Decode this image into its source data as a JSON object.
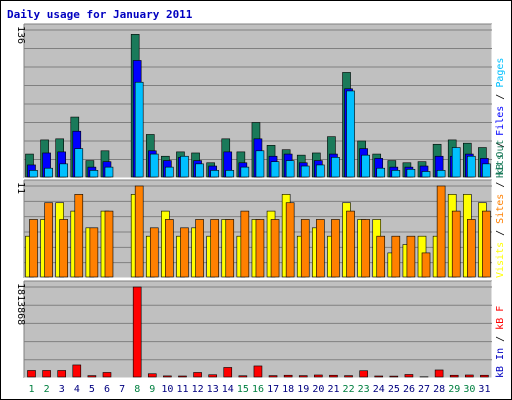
{
  "title": "Daily usage for January 2011",
  "colors": {
    "hits": "#1a7a5a",
    "files": "#0000ff",
    "pages": "#00c0ff",
    "visits": "#ffff00",
    "sites": "#ff8000",
    "kb": "#ff0000",
    "panel_bg": "#c0c0c0",
    "day_weekday": "#000080",
    "day_weekend": "#008040"
  },
  "chart_data": [
    {
      "type": "bar",
      "title": "Daily usage for January 2011",
      "panel": "top",
      "max_label": "136",
      "ylim": [
        0,
        136
      ],
      "legend": [
        {
          "text": "Hits",
          "color": "#1a7a5a"
        },
        {
          "text": "Files",
          "color": "#0000ff"
        },
        {
          "text": "Pages",
          "color": "#00c0ff"
        }
      ],
      "categories": [
        "1",
        "2",
        "3",
        "4",
        "5",
        "6",
        "7",
        "8",
        "9",
        "10",
        "11",
        "12",
        "13",
        "14",
        "15",
        "16",
        "17",
        "18",
        "19",
        "20",
        "21",
        "22",
        "23",
        "24",
        "25",
        "26",
        "27",
        "28",
        "29",
        "30",
        "31"
      ],
      "series": [
        {
          "name": "Hits",
          "values": [
            22,
            35,
            36,
            56,
            16,
            25,
            0,
            132,
            40,
            20,
            24,
            23,
            14,
            36,
            24,
            51,
            30,
            26,
            21,
            23,
            38,
            97,
            34,
            22,
            16,
            14,
            15,
            31,
            35,
            32,
            28
          ]
        },
        {
          "name": "Files",
          "values": [
            12,
            23,
            24,
            43,
            10,
            15,
            0,
            108,
            25,
            16,
            19,
            16,
            11,
            24,
            14,
            36,
            20,
            22,
            14,
            16,
            22,
            82,
            27,
            18,
            10,
            10,
            11,
            20,
            20,
            22,
            18
          ]
        },
        {
          "name": "Pages",
          "values": [
            7,
            9,
            13,
            27,
            7,
            10,
            0,
            88,
            22,
            10,
            20,
            13,
            7,
            7,
            10,
            25,
            15,
            16,
            11,
            12,
            19,
            80,
            21,
            9,
            7,
            8,
            6,
            7,
            28,
            20,
            13
          ]
        }
      ]
    },
    {
      "type": "bar",
      "panel": "middle",
      "max_label": "11",
      "ylim": [
        0,
        11
      ],
      "legend": [
        {
          "text": "Visits",
          "color": "#ffff00"
        },
        {
          "text": "Sites",
          "color": "#ff8000"
        },
        {
          "text": "kB Out",
          "color": "#1a7a5a"
        }
      ],
      "categories": [
        "1",
        "2",
        "3",
        "4",
        "5",
        "6",
        "7",
        "8",
        "9",
        "10",
        "11",
        "12",
        "13",
        "14",
        "15",
        "16",
        "17",
        "18",
        "19",
        "20",
        "21",
        "22",
        "23",
        "24",
        "25",
        "26",
        "27",
        "28",
        "29",
        "30",
        "31"
      ],
      "series": [
        {
          "name": "Visits",
          "values": [
            5,
            7,
            9,
            8,
            6,
            8,
            0,
            10,
            5,
            8,
            5,
            6,
            5,
            7,
            5,
            7,
            8,
            10,
            5,
            6,
            5,
            9,
            7,
            7,
            3,
            4,
            5,
            5,
            10,
            10,
            9
          ]
        },
        {
          "name": "Sites",
          "values": [
            7,
            9,
            7,
            10,
            6,
            8,
            0,
            11,
            6,
            7,
            6,
            7,
            7,
            7,
            8,
            7,
            7,
            9,
            7,
            7,
            7,
            8,
            7,
            5,
            5,
            5,
            3,
            11,
            8,
            7,
            8
          ]
        }
      ]
    },
    {
      "type": "bar",
      "panel": "bottom",
      "max_label": "1813868",
      "ylim": [
        0,
        1813868
      ],
      "legend": [
        {
          "text": "kB In",
          "color": "#0000c0"
        },
        {
          "text": "kB F",
          "color": "#ff0000"
        }
      ],
      "categories": [
        "1",
        "2",
        "3",
        "4",
        "5",
        "6",
        "7",
        "8",
        "9",
        "10",
        "11",
        "12",
        "13",
        "14",
        "15",
        "16",
        "17",
        "18",
        "19",
        "20",
        "21",
        "22",
        "23",
        "24",
        "25",
        "26",
        "27",
        "28",
        "29",
        "30",
        "31"
      ],
      "series": [
        {
          "name": "kB F",
          "values": [
            150000,
            150000,
            150000,
            260000,
            48000,
            110000,
            0,
            1813868,
            85000,
            42000,
            40000,
            110000,
            65000,
            210000,
            45000,
            240000,
            48000,
            55000,
            48000,
            60000,
            55000,
            48000,
            145000,
            40000,
            38000,
            70000,
            25000,
            160000,
            55000,
            60000,
            55000
          ]
        }
      ]
    }
  ]
}
